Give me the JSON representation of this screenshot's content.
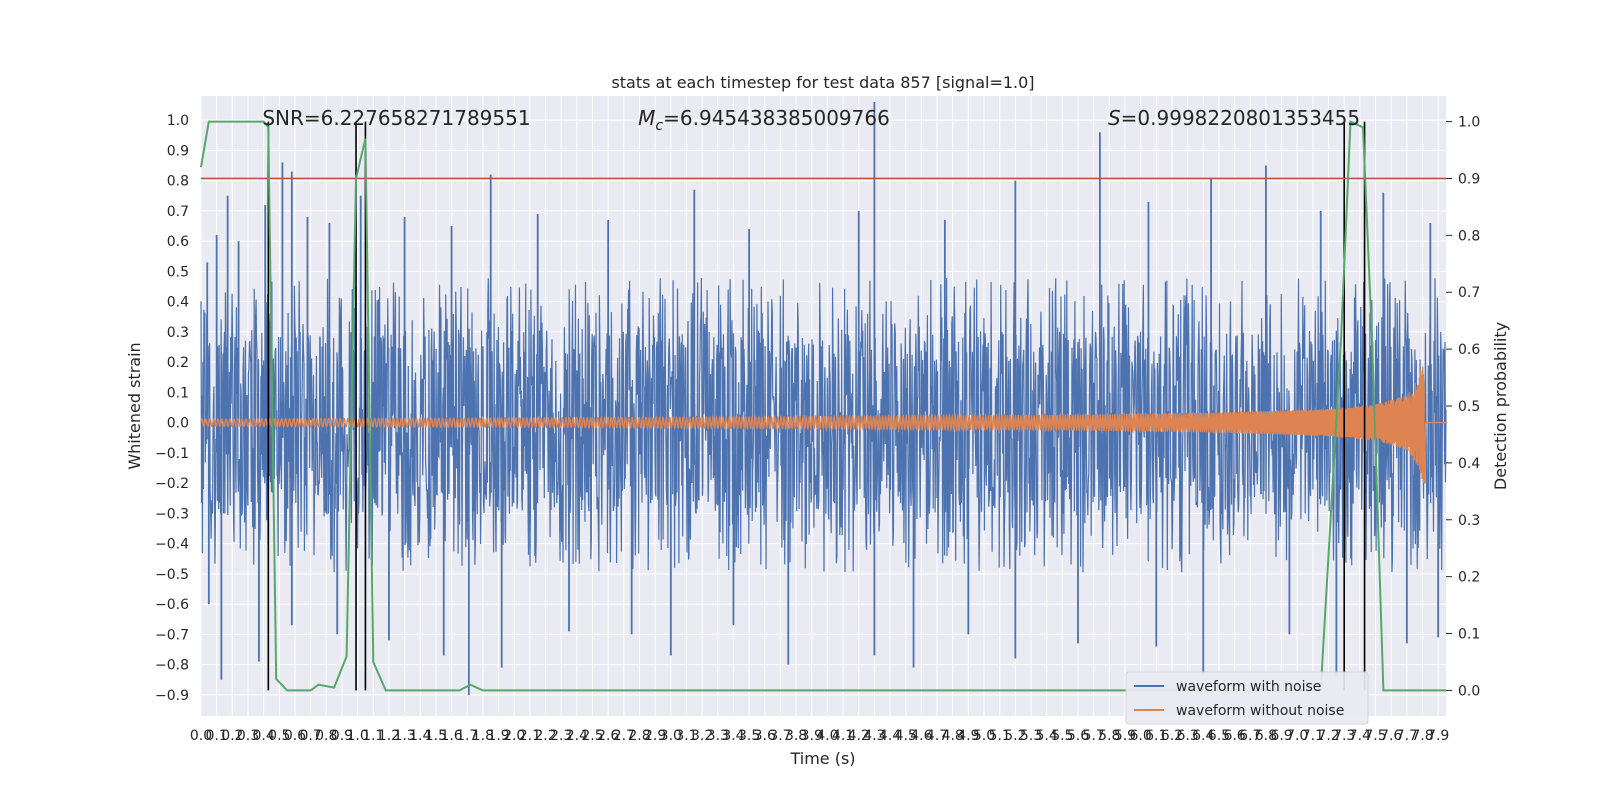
{
  "chart_data": {
    "type": "line",
    "title": "stats at each timestep for test data 857 [signal=1.0]",
    "xlabel": "Time (s)",
    "ylabel": "Whitened strain",
    "y2label": "Detection probability",
    "xlim": [
      0.0,
      7.95
    ],
    "ylim": [
      -0.97,
      1.08
    ],
    "y2lim": [
      -0.045,
      1.045
    ],
    "x_ticks": [
      "0.0",
      "0.1",
      "0.2",
      "0.3",
      "0.4",
      "0.5",
      "0.6",
      "0.7",
      "0.8",
      "0.9",
      "1.0",
      "1.1",
      "1.2",
      "1.3",
      "1.4",
      "1.5",
      "1.6",
      "1.7",
      "1.8",
      "1.9",
      "2.0",
      "2.1",
      "2.2",
      "2.3",
      "2.4",
      "2.5",
      "2.6",
      "2.7",
      "2.8",
      "2.9",
      "3.0",
      "3.1",
      "3.2",
      "3.3",
      "3.4",
      "3.5",
      "3.6",
      "3.7",
      "3.8",
      "3.9",
      "4.0",
      "4.1",
      "4.2",
      "4.3",
      "4.4",
      "4.5",
      "4.6",
      "4.7",
      "4.8",
      "4.9",
      "5.0",
      "5.1",
      "5.2",
      "5.3",
      "5.4",
      "5.5",
      "5.6",
      "5.7",
      "5.8",
      "5.9",
      "6.0",
      "6.1",
      "6.2",
      "6.3",
      "6.4",
      "6.5",
      "6.6",
      "6.7",
      "6.8",
      "6.9",
      "7.0",
      "7.1",
      "7.2",
      "7.3",
      "7.4",
      "7.5",
      "7.6",
      "7.7",
      "7.8",
      "7.9"
    ],
    "y_ticks": [
      "1.0",
      "0.9",
      "0.8",
      "0.7",
      "0.6",
      "0.5",
      "0.4",
      "0.3",
      "0.2",
      "0.1",
      "0.0",
      "−0.1",
      "−0.2",
      "−0.3",
      "−0.4",
      "−0.5",
      "−0.6",
      "−0.7",
      "−0.8",
      "−0.9"
    ],
    "y_tick_values": [
      1.0,
      0.9,
      0.8,
      0.7,
      0.6,
      0.5,
      0.4,
      0.3,
      0.2,
      0.1,
      0.0,
      -0.1,
      -0.2,
      -0.3,
      -0.4,
      -0.5,
      -0.6,
      -0.7,
      -0.8,
      -0.9
    ],
    "y2_ticks": [
      "1.0",
      "0.9",
      "0.8",
      "0.7",
      "0.6",
      "0.5",
      "0.4",
      "0.3",
      "0.2",
      "0.1",
      "0.0"
    ],
    "y2_tick_values": [
      1.0,
      0.9,
      0.8,
      0.7,
      0.6,
      0.5,
      0.4,
      0.3,
      0.2,
      0.1,
      0.0
    ],
    "annotations": [
      {
        "text": "SNR=6.227658271789551",
        "x": 0.2
      },
      {
        "text": "=6.945438385009766",
        "prefix": "M",
        "sub": "c",
        "x": 2.6
      },
      {
        "text": "=0.9998220801353455",
        "prefix": "S",
        "x": 5.6
      }
    ],
    "threshold_line": {
      "y2": 0.9,
      "color": "#c44e52"
    },
    "vertical_lines": [
      {
        "x": 0.43,
        "y2_top": 1.0
      },
      {
        "x": 0.99,
        "y2_top": 1.0
      },
      {
        "x": 1.05,
        "y2_top": 1.0
      },
      {
        "x": 7.3,
        "y2_top": 1.0
      },
      {
        "x": 7.43,
        "y2_top": 1.0
      }
    ],
    "series": [
      {
        "name": "waveform with noise",
        "color": "#4c72b0",
        "axis": "left",
        "noise_band": [
          -0.33,
          0.32
        ],
        "peaks": [
          {
            "x": 0.04,
            "y": 0.53
          },
          {
            "x": 0.1,
            "y": 0.62
          },
          {
            "x": 0.17,
            "y": 0.75
          },
          {
            "x": 0.24,
            "y": 0.6
          },
          {
            "x": 0.41,
            "y": 0.72
          },
          {
            "x": 0.52,
            "y": 0.86
          },
          {
            "x": 0.58,
            "y": 0.83
          },
          {
            "x": 0.68,
            "y": 0.68
          },
          {
            "x": 0.82,
            "y": 0.66
          },
          {
            "x": 1.02,
            "y": 0.75
          },
          {
            "x": 1.3,
            "y": 0.68
          },
          {
            "x": 1.6,
            "y": 0.65
          },
          {
            "x": 1.85,
            "y": 0.82
          },
          {
            "x": 2.15,
            "y": 0.69
          },
          {
            "x": 2.6,
            "y": 0.67
          },
          {
            "x": 3.15,
            "y": 0.77
          },
          {
            "x": 3.5,
            "y": 0.64
          },
          {
            "x": 4.2,
            "y": 0.7
          },
          {
            "x": 4.3,
            "y": 1.06
          },
          {
            "x": 4.75,
            "y": 0.67
          },
          {
            "x": 5.2,
            "y": 0.8
          },
          {
            "x": 5.74,
            "y": 0.96
          },
          {
            "x": 6.05,
            "y": 0.73
          },
          {
            "x": 6.45,
            "y": 0.81
          },
          {
            "x": 6.8,
            "y": 0.85
          },
          {
            "x": 7.15,
            "y": 0.7
          },
          {
            "x": 7.55,
            "y": 0.76
          },
          {
            "x": 7.85,
            "y": 0.66
          }
        ],
        "troughs": [
          {
            "x": 0.05,
            "y": -0.6
          },
          {
            "x": 0.13,
            "y": -0.85
          },
          {
            "x": 0.37,
            "y": -0.79
          },
          {
            "x": 0.58,
            "y": -0.67
          },
          {
            "x": 0.87,
            "y": -0.7
          },
          {
            "x": 1.2,
            "y": -0.72
          },
          {
            "x": 1.55,
            "y": -0.77
          },
          {
            "x": 1.71,
            "y": -0.9
          },
          {
            "x": 1.92,
            "y": -0.81
          },
          {
            "x": 2.35,
            "y": -0.69
          },
          {
            "x": 2.75,
            "y": -0.7
          },
          {
            "x": 3.0,
            "y": -0.77
          },
          {
            "x": 3.4,
            "y": -0.67
          },
          {
            "x": 3.75,
            "y": -0.8
          },
          {
            "x": 4.3,
            "y": -0.77
          },
          {
            "x": 4.55,
            "y": -0.81
          },
          {
            "x": 4.9,
            "y": -0.7
          },
          {
            "x": 5.2,
            "y": -0.78
          },
          {
            "x": 5.6,
            "y": -0.73
          },
          {
            "x": 6.1,
            "y": -0.74
          },
          {
            "x": 6.4,
            "y": -0.83
          },
          {
            "x": 6.95,
            "y": -0.7
          },
          {
            "x": 7.25,
            "y": -0.84
          },
          {
            "x": 7.7,
            "y": -0.73
          },
          {
            "x": 7.9,
            "y": -0.71
          }
        ]
      },
      {
        "name": "waveform without noise",
        "color": "#dd8452",
        "axis": "left",
        "envelope": [
          {
            "x": 0.0,
            "amp": 0.012
          },
          {
            "x": 2.0,
            "amp": 0.015
          },
          {
            "x": 4.0,
            "amp": 0.02
          },
          {
            "x": 5.5,
            "amp": 0.025
          },
          {
            "x": 6.5,
            "amp": 0.033
          },
          {
            "x": 7.2,
            "amp": 0.045
          },
          {
            "x": 7.5,
            "amp": 0.06
          },
          {
            "x": 7.7,
            "amp": 0.09
          },
          {
            "x": 7.78,
            "amp": 0.15
          },
          {
            "x": 7.8,
            "amp": 0.2
          }
        ],
        "merger_x": 7.81,
        "merger_peak": 0.16,
        "merger_trough": -0.2
      },
      {
        "name": "detection probability",
        "color": "#55a868",
        "axis": "right",
        "x": [
          0.0,
          0.05,
          0.1,
          0.2,
          0.3,
          0.4,
          0.43,
          0.48,
          0.55,
          0.6,
          0.7,
          0.75,
          0.85,
          0.93,
          0.99,
          1.05,
          1.1,
          1.18,
          1.3,
          1.5,
          1.65,
          1.72,
          1.8,
          1.9,
          2.5,
          3.5,
          4.5,
          5.5,
          6.5,
          7.15,
          7.28,
          7.34,
          7.42,
          7.48,
          7.55,
          7.7,
          7.95
        ],
        "y": [
          0.92,
          1.0,
          1.0,
          1.0,
          1.0,
          1.0,
          0.99,
          0.02,
          0.0,
          0.0,
          0.0,
          0.01,
          0.005,
          0.06,
          0.9,
          0.97,
          0.05,
          0.0,
          0.0,
          0.0,
          0.0,
          0.01,
          0.0,
          0.0,
          0.0,
          0.0,
          0.0,
          0.0,
          0.0,
          0.0,
          0.62,
          1.0,
          0.99,
          0.6,
          0.0,
          0.0,
          0.0
        ]
      }
    ],
    "legend_position": "bottom-right",
    "grid": true
  }
}
